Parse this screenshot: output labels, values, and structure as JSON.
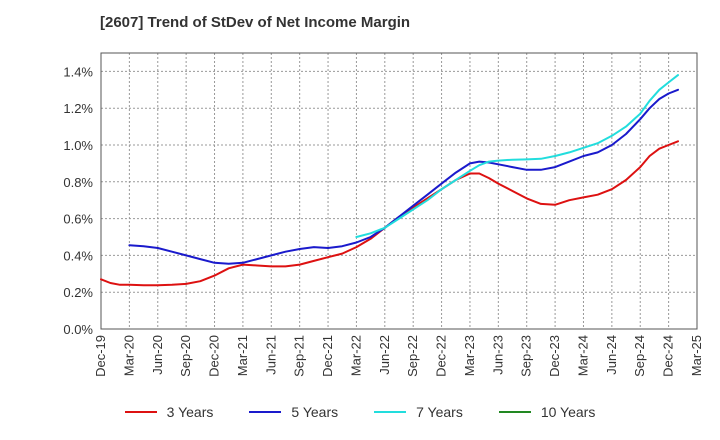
{
  "title": "[2607]  Trend of StDev of Net Income Margin",
  "chart_data": {
    "type": "line",
    "title": "[2607]  Trend of StDev of Net Income Margin",
    "xlabel": "",
    "ylabel": "",
    "ylim": [
      0,
      1.5
    ],
    "yticks": [
      "0.0%",
      "0.2%",
      "0.4%",
      "0.6%",
      "0.8%",
      "1.0%",
      "1.2%",
      "1.4%"
    ],
    "yticks_values": [
      0,
      0.2,
      0.4,
      0.6,
      0.8,
      1.0,
      1.2,
      1.4
    ],
    "x_categories": [
      "Dec-19",
      "Mar-20",
      "Jun-20",
      "Sep-20",
      "Dec-20",
      "Mar-21",
      "Jun-21",
      "Sep-21",
      "Dec-21",
      "Mar-22",
      "Jun-22",
      "Sep-22",
      "Dec-22",
      "Mar-23",
      "Jun-23",
      "Sep-23",
      "Dec-23",
      "Mar-24",
      "Jun-24",
      "Sep-24",
      "Dec-24",
      "Mar-25"
    ],
    "grid": true,
    "legend_position": "bottom",
    "series": [
      {
        "name": "3 Years",
        "color": "#dd1111",
        "points": [
          [
            0,
            0.27
          ],
          [
            0.33,
            0.25
          ],
          [
            0.67,
            0.24
          ],
          [
            1,
            0.24
          ],
          [
            1.5,
            0.238
          ],
          [
            2,
            0.238
          ],
          [
            2.5,
            0.24
          ],
          [
            3,
            0.245
          ],
          [
            3.5,
            0.26
          ],
          [
            4,
            0.29
          ],
          [
            4.5,
            0.33
          ],
          [
            5,
            0.35
          ],
          [
            5.5,
            0.345
          ],
          [
            6,
            0.34
          ],
          [
            6.5,
            0.34
          ],
          [
            7,
            0.35
          ],
          [
            7.5,
            0.37
          ],
          [
            8,
            0.39
          ],
          [
            8.5,
            0.41
          ],
          [
            9,
            0.445
          ],
          [
            9.5,
            0.49
          ],
          [
            10,
            0.55
          ],
          [
            10.5,
            0.61
          ],
          [
            11,
            0.66
          ],
          [
            11.5,
            0.71
          ],
          [
            12,
            0.76
          ],
          [
            12.5,
            0.81
          ],
          [
            13,
            0.845
          ],
          [
            13.33,
            0.845
          ],
          [
            13.67,
            0.82
          ],
          [
            14,
            0.79
          ],
          [
            14.5,
            0.75
          ],
          [
            15,
            0.71
          ],
          [
            15.5,
            0.68
          ],
          [
            16,
            0.675
          ],
          [
            16.5,
            0.7
          ],
          [
            17,
            0.715
          ],
          [
            17.5,
            0.73
          ],
          [
            18,
            0.76
          ],
          [
            18.5,
            0.81
          ],
          [
            19,
            0.88
          ],
          [
            19.33,
            0.94
          ],
          [
            19.67,
            0.98
          ],
          [
            20,
            1.0
          ],
          [
            20.33,
            1.02
          ]
        ]
      },
      {
        "name": "5 Years",
        "color": "#1a1acc",
        "points": [
          [
            1,
            0.455
          ],
          [
            1.5,
            0.45
          ],
          [
            2,
            0.44
          ],
          [
            2.5,
            0.42
          ],
          [
            3,
            0.4
          ],
          [
            3.5,
            0.38
          ],
          [
            4,
            0.36
          ],
          [
            4.5,
            0.355
          ],
          [
            5,
            0.36
          ],
          [
            5.5,
            0.38
          ],
          [
            6,
            0.4
          ],
          [
            6.5,
            0.42
          ],
          [
            7,
            0.435
          ],
          [
            7.5,
            0.445
          ],
          [
            8,
            0.44
          ],
          [
            8.5,
            0.45
          ],
          [
            9,
            0.47
          ],
          [
            9.5,
            0.5
          ],
          [
            10,
            0.55
          ],
          [
            10.5,
            0.61
          ],
          [
            11,
            0.67
          ],
          [
            11.5,
            0.73
          ],
          [
            12,
            0.79
          ],
          [
            12.5,
            0.85
          ],
          [
            13,
            0.9
          ],
          [
            13.33,
            0.91
          ],
          [
            13.67,
            0.905
          ],
          [
            14,
            0.895
          ],
          [
            14.5,
            0.88
          ],
          [
            15,
            0.865
          ],
          [
            15.5,
            0.865
          ],
          [
            16,
            0.88
          ],
          [
            16.5,
            0.91
          ],
          [
            17,
            0.94
          ],
          [
            17.5,
            0.96
          ],
          [
            18,
            1.0
          ],
          [
            18.5,
            1.06
          ],
          [
            19,
            1.14
          ],
          [
            19.33,
            1.2
          ],
          [
            19.67,
            1.25
          ],
          [
            20,
            1.28
          ],
          [
            20.33,
            1.3
          ]
        ]
      },
      {
        "name": "7 Years",
        "color": "#22dddd",
        "points": [
          [
            9,
            0.5
          ],
          [
            9.5,
            0.52
          ],
          [
            10,
            0.55
          ],
          [
            10.5,
            0.6
          ],
          [
            11,
            0.65
          ],
          [
            11.5,
            0.7
          ],
          [
            12,
            0.76
          ],
          [
            12.5,
            0.81
          ],
          [
            13,
            0.86
          ],
          [
            13.33,
            0.89
          ],
          [
            13.67,
            0.91
          ],
          [
            14,
            0.915
          ],
          [
            14.5,
            0.92
          ],
          [
            15,
            0.922
          ],
          [
            15.5,
            0.925
          ],
          [
            16,
            0.94
          ],
          [
            16.5,
            0.96
          ],
          [
            17,
            0.985
          ],
          [
            17.5,
            1.01
          ],
          [
            18,
            1.05
          ],
          [
            18.5,
            1.1
          ],
          [
            19,
            1.17
          ],
          [
            19.33,
            1.24
          ],
          [
            19.67,
            1.3
          ],
          [
            20,
            1.34
          ],
          [
            20.33,
            1.38
          ]
        ]
      },
      {
        "name": "10 Years",
        "color": "#228822",
        "points": []
      }
    ]
  }
}
